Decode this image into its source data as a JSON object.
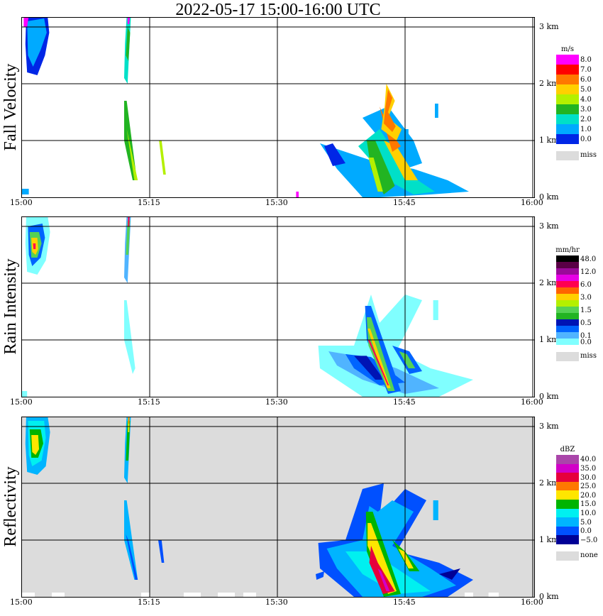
{
  "title": "2022-05-17   15:00-16:00 UTC",
  "x_ticks": [
    "15:00",
    "15:15",
    "15:30",
    "15:45",
    "16:00"
  ],
  "y_ticks": [
    "0 km",
    "1 km",
    "2 km",
    "3 km"
  ],
  "panels": [
    {
      "label": "Fall Velocity",
      "unit": "m/s",
      "colorbar": [
        {
          "color": "#ff00ff",
          "label": "8.0"
        },
        {
          "color": "#ff0000",
          "label": "7.0"
        },
        {
          "color": "#ff7800",
          "label": "6.0"
        },
        {
          "color": "#ffd000",
          "label": "5.0"
        },
        {
          "color": "#b4f000",
          "label": "4.0"
        },
        {
          "color": "#22b422",
          "label": "3.0"
        },
        {
          "color": "#00e0c8",
          "label": "2.0"
        },
        {
          "color": "#00aaff",
          "label": "1.0"
        },
        {
          "color": "#0026e6",
          "label": "0.0"
        }
      ],
      "missing": {
        "color": "#dcdcdc",
        "label": "miss"
      },
      "background": "#ffffff"
    },
    {
      "label": "Rain Intensity",
      "unit": "mm/hr",
      "colorbar": [
        {
          "color": "#000000",
          "label": "48.0"
        },
        {
          "color": "#5a0046",
          "label": ""
        },
        {
          "color": "#9a0a9a",
          "label": "12.0"
        },
        {
          "color": "#e600e6",
          "label": ""
        },
        {
          "color": "#ff0050",
          "label": "6.0"
        },
        {
          "color": "#ff6400",
          "label": ""
        },
        {
          "color": "#ffd000",
          "label": "3.0"
        },
        {
          "color": "#b4f000",
          "label": ""
        },
        {
          "color": "#55d255",
          "label": "1.5"
        },
        {
          "color": "#22b422",
          "label": ""
        },
        {
          "color": "#0014b4",
          "label": "0.5"
        },
        {
          "color": "#0064ff",
          "label": ""
        },
        {
          "color": "#50b4ff",
          "label": "0.1"
        },
        {
          "color": "#80ffff",
          "label": "0.0"
        }
      ],
      "missing": {
        "color": "#dcdcdc",
        "label": "miss"
      },
      "background": "#ffffff"
    },
    {
      "label": "Reflectivity",
      "unit": "dBZ",
      "colorbar": [
        {
          "color": "#aa46aa",
          "label": "40.0"
        },
        {
          "color": "#d200c8",
          "label": "35.0"
        },
        {
          "color": "#e6003c",
          "label": "30.0"
        },
        {
          "color": "#ff7800",
          "label": "25.0"
        },
        {
          "color": "#ffe600",
          "label": "20.0"
        },
        {
          "color": "#00b400",
          "label": "15.0"
        },
        {
          "color": "#00f0f0",
          "label": "10.0"
        },
        {
          "color": "#00b4ff",
          "label": "5.0"
        },
        {
          "color": "#0050ff",
          "label": "0.0"
        },
        {
          "color": "#000096",
          "label": "−5.0"
        }
      ],
      "missing": {
        "color": "#dcdcdc",
        "label": "none"
      },
      "background": "#dcdcdc"
    }
  ],
  "chart_data": {
    "type": "heatmap",
    "title": "2022-05-17   15:00-16:00 UTC",
    "x_range": [
      "15:00",
      "16:00"
    ],
    "y_range_km": [
      0,
      3.2
    ],
    "features": [
      {
        "name": "early echo top-left",
        "start_time": "15:00",
        "end_time": "15:03",
        "y_km": [
          2.2,
          3.2
        ],
        "fall_velocity_ms": [
          1.0,
          2.0
        ],
        "rain_rate_mmhr": [
          0.5,
          6.0
        ],
        "dbz": [
          10.0,
          25.0
        ]
      },
      {
        "name": "narrow streak near 15:12",
        "start_time": "15:11",
        "end_time": "15:14",
        "y_km": [
          0.2,
          3.2
        ],
        "fall_velocity_ms": [
          3.0,
          6.0
        ],
        "rain_rate_mmhr": [
          0.0,
          3.0
        ],
        "dbz": [
          5.0,
          20.0
        ]
      },
      {
        "name": "main rain shaft",
        "start_time": "15:35",
        "end_time": "15:53",
        "y_km": [
          0.0,
          2.0
        ],
        "fall_velocity_ms": [
          1.0,
          7.0
        ],
        "rain_rate_mmhr": [
          0.1,
          12.0
        ],
        "dbz": [
          5.0,
          35.0
        ]
      }
    ]
  }
}
